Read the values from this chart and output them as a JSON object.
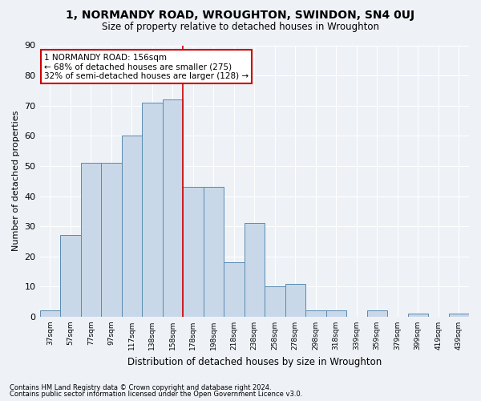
{
  "title1": "1, NORMANDY ROAD, WROUGHTON, SWINDON, SN4 0UJ",
  "title2": "Size of property relative to detached houses in Wroughton",
  "xlabel": "Distribution of detached houses by size in Wroughton",
  "ylabel": "Number of detached properties",
  "footnote1": "Contains HM Land Registry data © Crown copyright and database right 2024.",
  "footnote2": "Contains public sector information licensed under the Open Government Licence v3.0.",
  "bar_labels": [
    "37sqm",
    "57sqm",
    "77sqm",
    "97sqm",
    "117sqm",
    "138sqm",
    "158sqm",
    "178sqm",
    "198sqm",
    "218sqm",
    "238sqm",
    "258sqm",
    "278sqm",
    "298sqm",
    "318sqm",
    "339sqm",
    "359sqm",
    "379sqm",
    "399sqm",
    "419sqm",
    "439sqm"
  ],
  "bar_values": [
    2,
    27,
    51,
    51,
    60,
    71,
    72,
    43,
    43,
    18,
    31,
    10,
    11,
    2,
    2,
    0,
    2,
    0,
    1,
    0,
    1
  ],
  "bar_color": "#c8d8e8",
  "bar_edge_color": "#5a8ab0",
  "highlight_index": 6,
  "annotation_line1": "1 NORMANDY ROAD: 156sqm",
  "annotation_line2": "← 68% of detached houses are smaller (275)",
  "annotation_line3": "32% of semi-detached houses are larger (128) →",
  "annotation_box_color": "#ffffff",
  "annotation_box_edge": "#cc0000",
  "vline_color": "#cc0000",
  "background_color": "#eef2f7",
  "grid_color": "#ffffff",
  "ylim": [
    0,
    90
  ],
  "yticks": [
    0,
    10,
    20,
    30,
    40,
    50,
    60,
    70,
    80,
    90
  ]
}
